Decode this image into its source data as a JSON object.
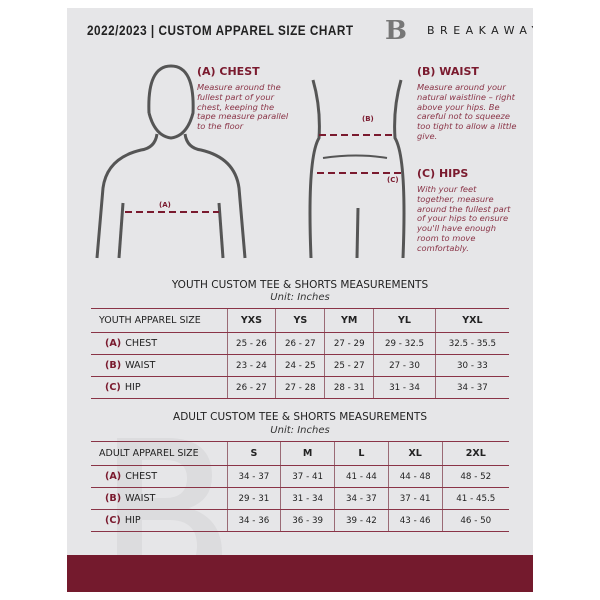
{
  "header": {
    "title": "2022/2023 | CUSTOM APPAREL SIZE CHART",
    "brand": "BREAKAWAY",
    "logo_letter": "B"
  },
  "measures": {
    "chest": {
      "heading": "(A) CHEST",
      "text": "Measure around the fullest part of your chest, keeping the tape measure parallel to the floor",
      "marker": "(A)"
    },
    "waist": {
      "heading": "(B) WAIST",
      "text": "Measure around your natural waistline – right above your hips. Be careful not to squeeze too tight to allow a little give.",
      "marker": "(B)"
    },
    "hips": {
      "heading": "(C) HIPS",
      "text": "With your feet together, measure around the fullest part of your hips to ensure you'll have enough room to move comfortably.",
      "marker": "(C)"
    }
  },
  "colors": {
    "accent": "#741a2d",
    "background": "#e6e6e8"
  },
  "youth": {
    "title": "YOUTH CUSTOM TEE & SHORTS MEASUREMENTS",
    "unit": "Unit: Inches",
    "header": [
      "YOUTH APPAREL SIZE",
      "YXS",
      "YS",
      "YM",
      "YL",
      "YXL"
    ],
    "rows": [
      {
        "letter": "(A)",
        "name": "CHEST",
        "values": [
          "25 - 26",
          "26 - 27",
          "27 - 29",
          "29 - 32.5",
          "32.5 - 35.5"
        ]
      },
      {
        "letter": "(B)",
        "name": "WAIST",
        "values": [
          "23 - 24",
          "24 - 25",
          "25 - 27",
          "27 - 30",
          "30 - 33"
        ]
      },
      {
        "letter": "(C)",
        "name": "HIP",
        "values": [
          "26 - 27",
          "27 - 28",
          "28 - 31",
          "31 - 34",
          "34 - 37"
        ]
      }
    ]
  },
  "adult": {
    "title": "ADULT CUSTOM TEE & SHORTS MEASUREMENTS",
    "unit": "Unit: Inches",
    "header": [
      "ADULT APPAREL SIZE",
      "S",
      "M",
      "L",
      "XL",
      "2XL"
    ],
    "rows": [
      {
        "letter": "(A)",
        "name": "CHEST",
        "values": [
          "34 - 37",
          "37 - 41",
          "41 - 44",
          "44 - 48",
          "48 - 52"
        ]
      },
      {
        "letter": "(B)",
        "name": "WAIST",
        "values": [
          "29 - 31",
          "31 - 34",
          "34 - 37",
          "37 - 41",
          "41 - 45.5"
        ]
      },
      {
        "letter": "(C)",
        "name": "HIP",
        "values": [
          "34 - 36",
          "36 - 39",
          "39 - 42",
          "43 - 46",
          "46 - 50"
        ]
      }
    ]
  }
}
